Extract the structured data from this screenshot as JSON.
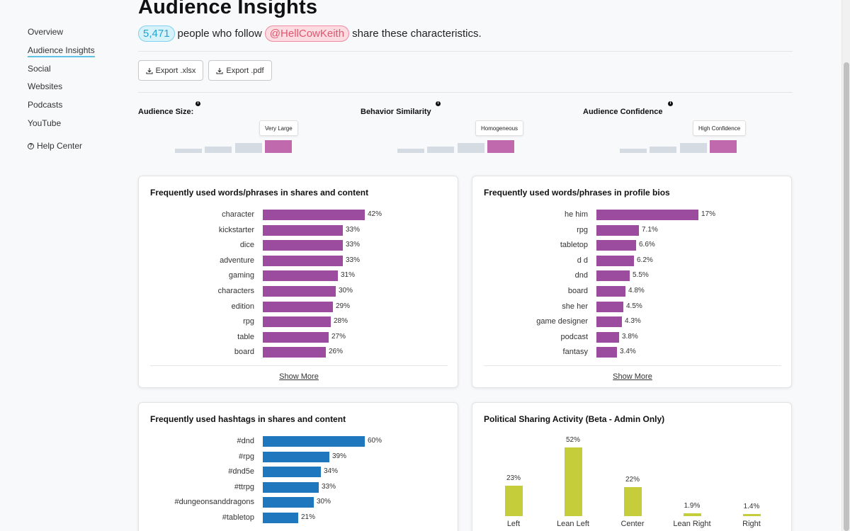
{
  "sidebar": {
    "items": [
      {
        "label": "Overview",
        "active": false
      },
      {
        "label": "Audience Insights",
        "active": true
      },
      {
        "label": "Social",
        "active": false
      },
      {
        "label": "Websites",
        "active": false
      },
      {
        "label": "Podcasts",
        "active": false
      },
      {
        "label": "YouTube",
        "active": false
      }
    ],
    "help_label": "Help Center",
    "help_icon": "question-circle-icon"
  },
  "header": {
    "title": "Audience Insights",
    "count": "5,471",
    "text_before": "people who follow",
    "handle": "@HellCowKeith",
    "text_after": "share these characteristics."
  },
  "toolbar": {
    "export_xlsx_label": "Export .xlsx",
    "export_pdf_label": "Export .pdf",
    "icon": "download-icon"
  },
  "metrics": [
    {
      "label": "Audience Size:",
      "badge": "Very Large",
      "level": 4,
      "of": 4
    },
    {
      "label": "Behavior Similarity",
      "badge": "Homogeneous",
      "level": 4,
      "of": 4
    },
    {
      "label": "Audience Confidence",
      "badge": "High Confidence",
      "level": 4,
      "of": 4
    }
  ],
  "colors": {
    "purple_bar": "#9c4c9e",
    "blue_bar": "#1f78be",
    "political_bar": "#c5cd3a",
    "meter_on": "#c069ad",
    "meter_off": "#d4dbe2",
    "count_pill": "#d6f2fb",
    "handle_pill": "#fcdbe1"
  },
  "chart_data": [
    {
      "type": "bar",
      "orientation": "horizontal",
      "title": "Frequently used words/phrases in shares and content",
      "categories": [
        "character",
        "kickstarter",
        "dice",
        "adventure",
        "gaming",
        "characters",
        "edition",
        "rpg",
        "table",
        "board"
      ],
      "values": [
        42,
        33,
        33,
        33,
        31,
        30,
        29,
        28,
        27,
        26
      ],
      "value_labels": [
        "42%",
        "33%",
        "33%",
        "33%",
        "31%",
        "30%",
        "29%",
        "28%",
        "27%",
        "26%"
      ],
      "show_more": "Show More"
    },
    {
      "type": "bar",
      "orientation": "horizontal",
      "title": "Frequently used words/phrases in profile bios",
      "categories": [
        "he him",
        "rpg",
        "tabletop",
        "d d",
        "dnd",
        "board",
        "she her",
        "game designer",
        "podcast",
        "fantasy"
      ],
      "values": [
        17,
        7.1,
        6.6,
        6.2,
        5.5,
        4.8,
        4.5,
        4.3,
        3.8,
        3.4
      ],
      "value_labels": [
        "17%",
        "7.1%",
        "6.6%",
        "6.2%",
        "5.5%",
        "4.8%",
        "4.5%",
        "4.3%",
        "3.8%",
        "3.4%"
      ],
      "show_more": "Show More"
    },
    {
      "type": "bar",
      "orientation": "horizontal",
      "title": "Frequently used hashtags in shares and content",
      "categories": [
        "#dnd",
        "#rpg",
        "#dnd5e",
        "#ttrpg",
        "#dungeonsanddragons",
        "#tabletop"
      ],
      "values": [
        60,
        39,
        34,
        33,
        30,
        21
      ],
      "value_labels": [
        "60%",
        "39%",
        "34%",
        "33%",
        "30%",
        "21%"
      ]
    },
    {
      "type": "bar",
      "orientation": "vertical",
      "title": "Political Sharing Activity (Beta - Admin Only)",
      "categories": [
        "Left",
        "Lean Left",
        "Center",
        "Lean Right",
        "Right"
      ],
      "values": [
        23,
        52,
        22,
        1.9,
        1.4
      ],
      "value_labels": [
        "23%",
        "52%",
        "22%",
        "1.9%",
        "1.4%"
      ]
    }
  ]
}
